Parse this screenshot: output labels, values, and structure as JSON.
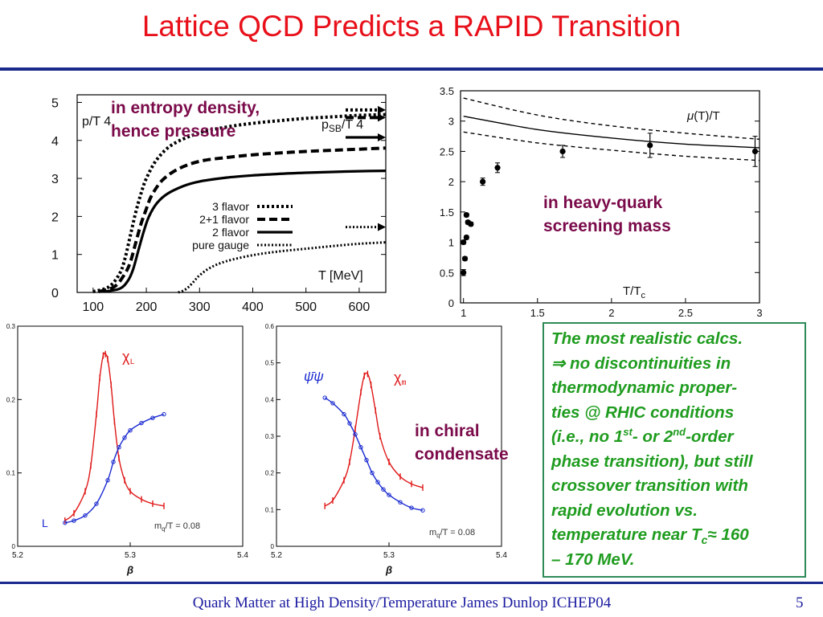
{
  "slide": {
    "title": "Lattice QCD Predicts a RAPID Transition",
    "footer": "Quark Matter at High Density/Temperature James Dunlop ICHEP04",
    "page_number": "5"
  },
  "annotations": {
    "entropy_line1": "in entropy density,",
    "entropy_line2": "hence pressure",
    "screening_line1": "in heavy-quark",
    "screening_line2": "screening mass",
    "chiral_line1": "in chiral",
    "chiral_line2": "condensate"
  },
  "conclusion": {
    "l1": "The most realistic calcs.",
    "l2_symbol": "⇒",
    "l2_text": " no discontinuities in",
    "l3": "thermodynamic proper-",
    "l4": "ties @ RHIC conditions",
    "l5a": "(i.e., no 1",
    "l5_sup1": "st",
    "l5b": "- or 2",
    "l5_sup2": "nd",
    "l5c": "-order",
    "l6": "phase transition), but still",
    "l7": "crossover transition with",
    "l8": "rapid evolution vs.",
    "l9a": "temperature near T",
    "l9_sub": "c",
    "l9b": "≈ 160",
    "l10": "– 170 MeV."
  },
  "colors": {
    "title": "#e8101a",
    "rule": "#1a2a8c",
    "annotation": "#7a0a4a",
    "conclusion_text": "#1f9c1f",
    "conclusion_border": "#2e8b57",
    "chi_red": "#e01818",
    "condensate_blue": "#1a2ad0"
  },
  "chart_data": [
    {
      "type": "line",
      "ylabel": "p/T 4",
      "sb_label": "p",
      "sb_sub": "SB",
      "sb_rest": "/T 4",
      "xlabel": "T [MeV]",
      "xlim": [
        70,
        650
      ],
      "ylim": [
        0,
        5.2
      ],
      "xticks": [
        100,
        200,
        300,
        400,
        500,
        600
      ],
      "yticks": [
        0,
        1,
        2,
        3,
        4,
        5
      ],
      "series": [
        {
          "name": "3 flavor",
          "style": "dotted-heavy",
          "x": [
            100,
            130,
            150,
            160,
            170,
            180,
            190,
            200,
            220,
            250,
            300,
            350,
            400,
            450,
            500,
            550,
            600,
            650
          ],
          "y": [
            0.02,
            0.15,
            0.5,
            0.9,
            1.5,
            2.1,
            2.6,
            3.0,
            3.5,
            3.9,
            4.2,
            4.35,
            4.45,
            4.52,
            4.58,
            4.62,
            4.66,
            4.68
          ]
        },
        {
          "name": "2+1 flavor",
          "style": "dashed",
          "x": [
            110,
            140,
            160,
            170,
            180,
            190,
            200,
            210,
            230,
            260,
            300,
            350,
            400,
            450,
            500,
            550,
            600,
            650
          ],
          "y": [
            0.02,
            0.15,
            0.5,
            0.8,
            1.3,
            1.8,
            2.2,
            2.55,
            2.95,
            3.25,
            3.45,
            3.55,
            3.62,
            3.67,
            3.71,
            3.74,
            3.77,
            3.8
          ]
        },
        {
          "name": "2 flavor",
          "style": "solid",
          "x": [
            120,
            150,
            165,
            175,
            185,
            195,
            205,
            220,
            240,
            270,
            300,
            350,
            400,
            450,
            500,
            550,
            600,
            650
          ],
          "y": [
            0.02,
            0.1,
            0.3,
            0.6,
            1.1,
            1.6,
            2.0,
            2.35,
            2.6,
            2.8,
            2.92,
            3.02,
            3.08,
            3.12,
            3.15,
            3.17,
            3.19,
            3.2
          ]
        },
        {
          "name": "pure gauge",
          "style": "dotted-light",
          "x": [
            260,
            270,
            280,
            290,
            300,
            320,
            350,
            400,
            450,
            500,
            550,
            600,
            650
          ],
          "y": [
            0.0,
            0.05,
            0.15,
            0.3,
            0.45,
            0.65,
            0.82,
            0.98,
            1.08,
            1.15,
            1.22,
            1.28,
            1.32
          ]
        }
      ],
      "sb_arrows": [
        4.8,
        4.6,
        4.08,
        1.72
      ]
    },
    {
      "type": "scatter",
      "xlabel": "T/T",
      "xlabel_sub": "c",
      "series_label": "(T)/T",
      "series_label_symbol": "μ",
      "xlim": [
        0.98,
        3.0
      ],
      "ylim": [
        0,
        3.5
      ],
      "xticks": [
        1,
        1.5,
        2,
        2.5,
        3
      ],
      "xtick_labels": [
        "1",
        "1.5",
        "2",
        "2.5",
        "3"
      ],
      "yticks": [
        0,
        0.5,
        1,
        1.5,
        2,
        2.5,
        3,
        3.5
      ],
      "ytick_labels": [
        "0",
        "0.5",
        "1",
        "1.5",
        "2",
        "2.5",
        "3",
        "3.5"
      ],
      "points": {
        "x": [
          1.0,
          1.01,
          1.0,
          1.02,
          1.03,
          1.02,
          1.05,
          1.13,
          1.23,
          1.67,
          2.26,
          2.97
        ],
        "y": [
          0.5,
          0.73,
          1.0,
          1.08,
          1.33,
          1.45,
          1.3,
          2.0,
          2.23,
          2.5,
          2.6,
          2.5
        ],
        "err": [
          0.05,
          0.03,
          0.03,
          0.03,
          0.03,
          0.03,
          0.03,
          0.06,
          0.08,
          0.1,
          0.2,
          0.25
        ]
      },
      "band_center": {
        "x": [
          1.0,
          1.5,
          2.0,
          2.5,
          3.0
        ],
        "y": [
          3.08,
          2.86,
          2.72,
          2.62,
          2.56
        ]
      },
      "band_upper": {
        "x": [
          1.0,
          1.5,
          2.0,
          2.5,
          3.0
        ],
        "y": [
          3.38,
          3.1,
          2.92,
          2.8,
          2.7
        ]
      },
      "band_lower": {
        "x": [
          1.0,
          1.5,
          2.0,
          2.5,
          3.0
        ],
        "y": [
          2.82,
          2.64,
          2.52,
          2.42,
          2.35
        ]
      }
    },
    {
      "type": "line",
      "xlabel": "β",
      "chi_label": "χ",
      "chi_sub": "L",
      "L_label": "L",
      "mass_label": "m",
      "mass_sub": "q",
      "mass_rest": "/T = 0.08",
      "xlim": [
        5.2,
        5.4
      ],
      "ylim": [
        0,
        0.3
      ],
      "xticks": [
        5.2,
        5.3,
        5.4
      ],
      "xtick_labels": [
        "5.2",
        "5.3",
        "5.4"
      ],
      "yticks": [
        0,
        0.1,
        0.2,
        0.3
      ],
      "ytick_labels": [
        "0",
        "0.1",
        "0.2",
        "0.3"
      ],
      "series": [
        {
          "name": "χ_L",
          "color": "red",
          "x": [
            5.242,
            5.25,
            5.26,
            5.265,
            5.27,
            5.273,
            5.276,
            5.278,
            5.28,
            5.283,
            5.286,
            5.29,
            5.295,
            5.3,
            5.31,
            5.32,
            5.33
          ],
          "y": [
            0.035,
            0.045,
            0.075,
            0.11,
            0.18,
            0.23,
            0.26,
            0.262,
            0.255,
            0.22,
            0.17,
            0.12,
            0.09,
            0.075,
            0.064,
            0.058,
            0.055
          ]
        },
        {
          "name": "L",
          "color": "blue",
          "x": [
            5.242,
            5.25,
            5.26,
            5.27,
            5.28,
            5.285,
            5.29,
            5.295,
            5.3,
            5.31,
            5.32,
            5.33
          ],
          "y": [
            0.032,
            0.035,
            0.042,
            0.058,
            0.09,
            0.115,
            0.135,
            0.148,
            0.158,
            0.168,
            0.175,
            0.18
          ]
        }
      ]
    },
    {
      "type": "line",
      "xlabel": "β",
      "chi_label": "χ",
      "chi_sub": "m",
      "psi_label": "ψ̄ψ",
      "mass_label": "m",
      "mass_sub": "q",
      "mass_rest": "/T = 0.08",
      "xlim": [
        5.2,
        5.4
      ],
      "ylim": [
        0,
        0.6
      ],
      "xticks": [
        5.2,
        5.3,
        5.4
      ],
      "xtick_labels": [
        "5.2",
        "5.3",
        "5.4"
      ],
      "yticks": [
        0,
        0.1,
        0.2,
        0.3,
        0.4,
        0.5,
        0.6
      ],
      "ytick_labels": [
        "0",
        "0.1",
        "0.2",
        "0.3",
        "0.4",
        "0.5",
        "0.6"
      ],
      "series": [
        {
          "name": "χ_m",
          "color": "red",
          "x": [
            5.243,
            5.25,
            5.26,
            5.265,
            5.27,
            5.275,
            5.278,
            5.281,
            5.284,
            5.288,
            5.292,
            5.3,
            5.31,
            5.32,
            5.33
          ],
          "y": [
            0.11,
            0.125,
            0.18,
            0.23,
            0.32,
            0.42,
            0.465,
            0.47,
            0.44,
            0.37,
            0.3,
            0.23,
            0.19,
            0.17,
            0.16
          ]
        },
        {
          "name": "ψ̄ψ",
          "color": "blue",
          "x": [
            5.243,
            5.25,
            5.26,
            5.265,
            5.27,
            5.275,
            5.28,
            5.285,
            5.29,
            5.295,
            5.3,
            5.31,
            5.32,
            5.33
          ],
          "y": [
            0.405,
            0.39,
            0.36,
            0.335,
            0.305,
            0.27,
            0.235,
            0.2,
            0.175,
            0.155,
            0.14,
            0.12,
            0.105,
            0.098
          ]
        }
      ]
    }
  ]
}
